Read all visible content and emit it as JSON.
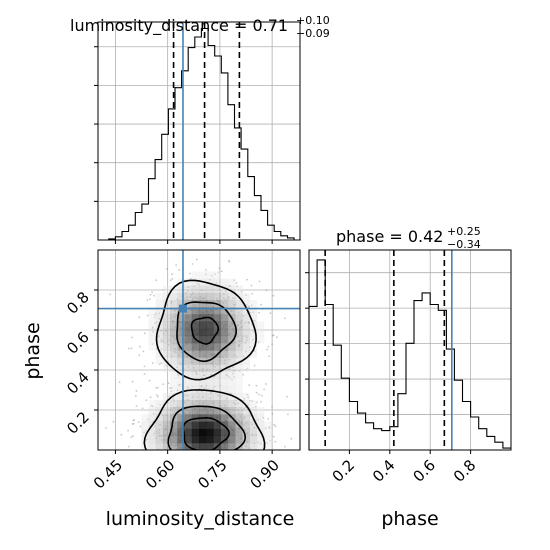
{
  "chart_data": {
    "type": "corner",
    "truth": {
      "luminosity_distance": 0.644,
      "phase": 0.707
    },
    "panels": [
      {
        "id": "hist_luminosity_distance",
        "type": "histogram",
        "parameter": "luminosity_distance",
        "title": {
          "text": "luminosity_distance = 0.71",
          "plus": "+0.10",
          "minus": "−0.09"
        },
        "xlim": [
          0.4,
          0.98
        ],
        "bin_edges": [
          0.412,
          0.431,
          0.45,
          0.469,
          0.488,
          0.507,
          0.526,
          0.545,
          0.564,
          0.583,
          0.602,
          0.621,
          0.64,
          0.659,
          0.678,
          0.697,
          0.716,
          0.735,
          0.754,
          0.773,
          0.792,
          0.811,
          0.83,
          0.849,
          0.868,
          0.887,
          0.906,
          0.925,
          0.944,
          0.963,
          0.982
        ],
        "counts": [
          0.0,
          0.005,
          0.015,
          0.04,
          0.07,
          0.13,
          0.17,
          0.29,
          0.38,
          0.5,
          0.62,
          0.72,
          0.8,
          0.91,
          0.96,
          1.0,
          0.92,
          0.87,
          0.79,
          0.64,
          0.53,
          0.43,
          0.3,
          0.21,
          0.14,
          0.07,
          0.04,
          0.02,
          0.01,
          0.0
        ],
        "quantiles": [
          0.617,
          0.706,
          0.806
        ],
        "truth": 0.644
      },
      {
        "id": "hist_phase",
        "type": "histogram",
        "parameter": "phase",
        "title": {
          "text": "phase = 0.42",
          "plus": "+0.25",
          "minus": "−0.34"
        },
        "xlim": [
          0.0,
          1.0
        ],
        "xticks": [
          0.2,
          0.4,
          0.6,
          0.8
        ],
        "bin_edges": [
          0.0,
          0.04,
          0.08,
          0.12,
          0.16,
          0.2,
          0.24,
          0.28,
          0.32,
          0.36,
          0.4,
          0.44,
          0.48,
          0.52,
          0.56,
          0.6,
          0.64,
          0.68,
          0.72,
          0.76,
          0.8,
          0.84,
          0.88,
          0.92,
          0.96,
          1.0
        ],
        "counts": [
          0.74,
          0.98,
          0.75,
          0.54,
          0.37,
          0.25,
          0.19,
          0.14,
          0.11,
          0.1,
          0.12,
          0.29,
          0.55,
          0.77,
          0.81,
          0.75,
          0.72,
          0.52,
          0.36,
          0.25,
          0.17,
          0.11,
          0.07,
          0.04,
          0.01
        ],
        "quantiles": [
          0.08,
          0.42,
          0.67
        ],
        "truth": 0.707
      },
      {
        "id": "joint",
        "type": "2d_density",
        "x": "luminosity_distance",
        "y": "phase",
        "xlim": [
          0.4,
          0.98
        ],
        "ylim": [
          0.0,
          1.0
        ],
        "xticks": [
          0.45,
          0.6,
          0.75,
          0.9
        ],
        "yticks": [
          0.2,
          0.4,
          0.6,
          0.8
        ],
        "xlabel": "luminosity_distance",
        "ylabel": "phase",
        "modes": [
          {
            "cx": 0.706,
            "cy": 0.6,
            "sx": 0.075,
            "sy": 0.13,
            "weight": 0.85
          },
          {
            "cx": 0.706,
            "cy": 0.08,
            "sx": 0.085,
            "sy": 0.11,
            "weight": 1.0
          }
        ],
        "contour_levels": [
          0.75,
          0.45,
          0.15
        ],
        "truth": [
          0.644,
          0.707
        ]
      }
    ],
    "colors": {
      "truth": "#4682b4",
      "hist": "#000000",
      "grid": "#b0b0b0",
      "quantile": "#000000"
    }
  }
}
